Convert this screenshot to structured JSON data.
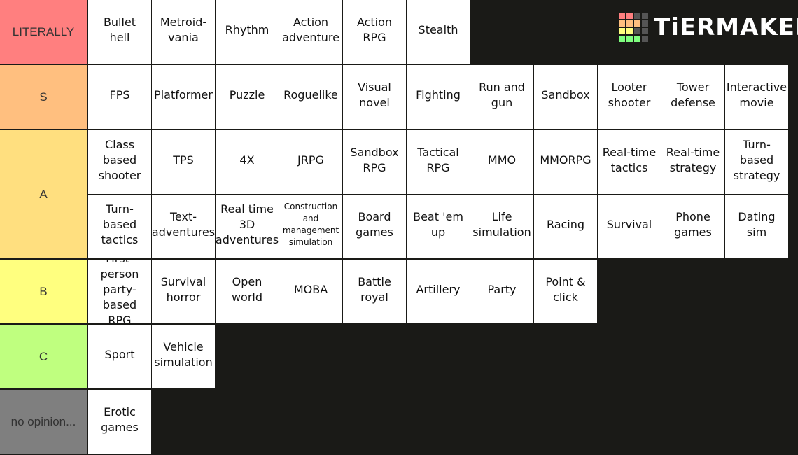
{
  "logo": "TiERMAKER",
  "tiers": [
    {
      "label": "LITERALLY",
      "color": "#ff7f7f",
      "items": [
        "Bullet hell",
        "Metroid-vania",
        "Rhythm",
        "Action adventure",
        "Action RPG",
        "Stealth"
      ]
    },
    {
      "label": "S",
      "color": "#ffbf7f",
      "items": [
        "FPS",
        "Platformer",
        "Puzzle",
        "Roguelike",
        "Visual novel",
        "Fighting",
        "Run and gun",
        "Sandbox",
        "Looter shooter",
        "Tower defense",
        "Interactive movie"
      ]
    },
    {
      "label": "A",
      "color": "#ffdf7f",
      "items": [
        "Class based shooter",
        "TPS",
        "4X",
        "JRPG",
        "Sandbox RPG",
        "Tactical RPG",
        "MMO",
        "MMORPG",
        "Real-time tactics",
        "Real-time strategy",
        "Turn-based strategy",
        "Turn-based tactics",
        "Text-adventures",
        "Real time 3D adventures",
        "Construction and management simulation",
        "Board games",
        "Beat 'em up",
        "Life simulation",
        "Racing",
        "Survival",
        "Phone games",
        "Dating sim"
      ]
    },
    {
      "label": "B",
      "color": "#ffff7f",
      "items": [
        "First-person party-based RPG",
        "Survival horror",
        "Open world",
        "MOBA",
        "Battle royal",
        "Artillery",
        "Party",
        "Point & click"
      ]
    },
    {
      "label": "C",
      "color": "#bfff7f",
      "items": [
        "Sport",
        "Vehicle simulation"
      ]
    },
    {
      "label": "no opinion...",
      "color": "#7f7f7f",
      "items": [
        "Erotic games"
      ]
    }
  ]
}
